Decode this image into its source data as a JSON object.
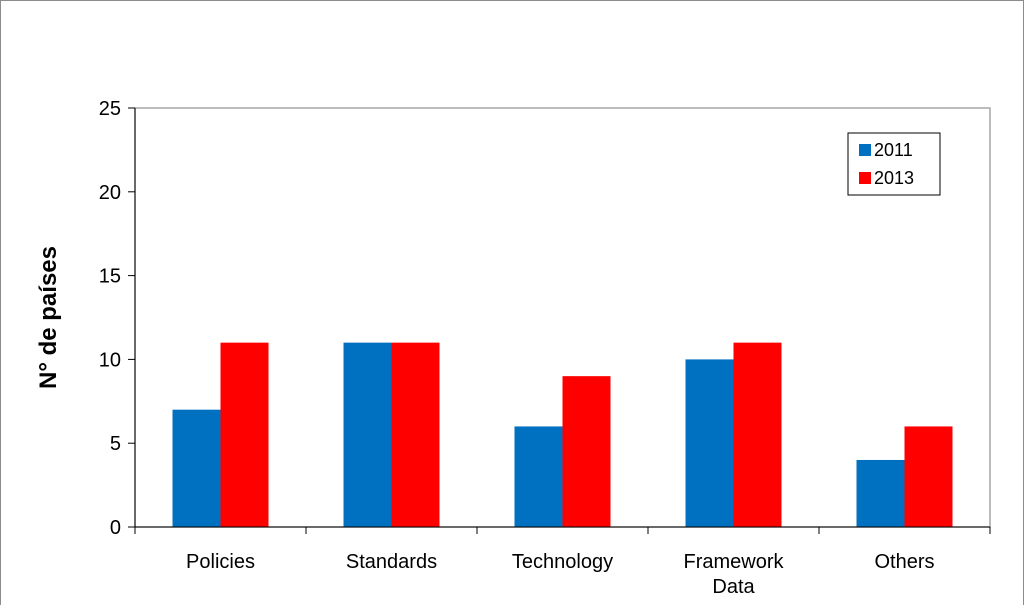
{
  "chart_data": {
    "type": "bar",
    "categories": [
      [
        "Policies"
      ],
      [
        "Standards"
      ],
      [
        "Technology"
      ],
      [
        "Framework",
        "Data"
      ],
      [
        "Others"
      ]
    ],
    "series": [
      {
        "name": "2011",
        "color": "#0070C0",
        "values": [
          7,
          11,
          6,
          10,
          4
        ]
      },
      {
        "name": "2013",
        "color": "#FF0000",
        "values": [
          11,
          11,
          9,
          11,
          6
        ]
      }
    ],
    "ylabel": "N° de países",
    "ylim": [
      0,
      25
    ],
    "yticks": [
      0,
      5,
      10,
      15,
      20,
      25
    ],
    "legend_position": "top-right",
    "grid": false
  }
}
